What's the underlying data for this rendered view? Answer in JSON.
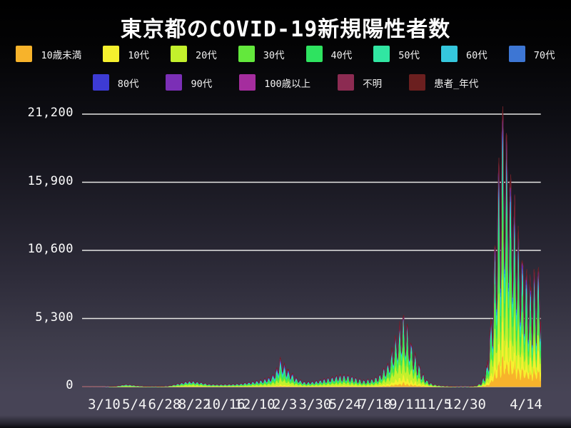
{
  "title": "東京都のCOVID-19新規陽性者数",
  "colors": {
    "text": "#ffffff",
    "grid": "#e6e6e4",
    "bg_top": "#000000",
    "bg_bottom": "#474456"
  },
  "chart_data": {
    "type": "area",
    "stacked": true,
    "title": "東京都のCOVID-19新規陽性者数",
    "xlabel": "",
    "ylabel": "",
    "grid": "horizontal",
    "legend_position": "top",
    "ylim": [
      0,
      21200
    ],
    "y_ticks": [
      0,
      5300,
      10600,
      15900,
      21200
    ],
    "y_tick_labels": [
      "0",
      "5,300",
      "10,600",
      "15,900",
      "21,200"
    ],
    "x_ticks": [
      {
        "label": "3/10",
        "day": 45
      },
      {
        "label": "5/4",
        "day": 100
      },
      {
        "label": "6/28",
        "day": 155
      },
      {
        "label": "8/22",
        "day": 210
      },
      {
        "label": "10/16",
        "day": 265
      },
      {
        "label": "12/10",
        "day": 320
      },
      {
        "label": "2/3",
        "day": 375
      },
      {
        "label": "3/30",
        "day": 430
      },
      {
        "label": "5/24",
        "day": 485
      },
      {
        "label": "7/18",
        "day": 540
      },
      {
        "label": "9/11",
        "day": 595
      },
      {
        "label": "11/5",
        "day": 650
      },
      {
        "label": "12/30",
        "day": 705
      },
      {
        "label": "4/14",
        "day": 810
      }
    ],
    "series": [
      {
        "name": "10歳未満",
        "color": "#F7B32B"
      },
      {
        "name": "10代",
        "color": "#F5F02E"
      },
      {
        "name": "20代",
        "color": "#C3F02C"
      },
      {
        "name": "30代",
        "color": "#63E83C"
      },
      {
        "name": "40代",
        "color": "#2EE360"
      },
      {
        "name": "50代",
        "color": "#31E6A2"
      },
      {
        "name": "60代",
        "color": "#35C7DD"
      },
      {
        "name": "70代",
        "color": "#3D76D4"
      },
      {
        "name": "80代",
        "color": "#3D3BD4"
      },
      {
        "name": "90代",
        "color": "#7B2FB6"
      },
      {
        "name": "100歳以上",
        "color": "#A52D9E"
      },
      {
        "name": "不明",
        "color": "#8C2B52"
      },
      {
        "name": "患者_年代",
        "color": "#6B1F1F"
      }
    ],
    "legend_rows": [
      [
        0,
        1,
        2,
        3,
        4,
        5,
        6,
        7
      ],
      [
        8,
        9,
        10,
        11,
        12
      ]
    ],
    "days_span": 810,
    "total_7day_envelope": [
      [
        0,
        2
      ],
      [
        30,
        4
      ],
      [
        45,
        15
      ],
      [
        60,
        40
      ],
      [
        75,
        165
      ],
      [
        85,
        150
      ],
      [
        95,
        90
      ],
      [
        110,
        30
      ],
      [
        130,
        22
      ],
      [
        150,
        45
      ],
      [
        170,
        220
      ],
      [
        185,
        380
      ],
      [
        195,
        410
      ],
      [
        210,
        300
      ],
      [
        225,
        180
      ],
      [
        240,
        165
      ],
      [
        260,
        180
      ],
      [
        280,
        220
      ],
      [
        300,
        350
      ],
      [
        320,
        500
      ],
      [
        335,
        750
      ],
      [
        345,
        1300
      ],
      [
        348,
        2100
      ],
      [
        355,
        1700
      ],
      [
        365,
        1150
      ],
      [
        380,
        550
      ],
      [
        395,
        330
      ],
      [
        410,
        380
      ],
      [
        430,
        550
      ],
      [
        455,
        800
      ],
      [
        465,
        820
      ],
      [
        480,
        650
      ],
      [
        495,
        450
      ],
      [
        510,
        500
      ],
      [
        525,
        800
      ],
      [
        540,
        1600
      ],
      [
        555,
        3500
      ],
      [
        565,
        4700
      ],
      [
        572,
        4400
      ],
      [
        580,
        3200
      ],
      [
        590,
        2000
      ],
      [
        600,
        1000
      ],
      [
        610,
        400
      ],
      [
        620,
        180
      ],
      [
        635,
        70
      ],
      [
        650,
        30
      ],
      [
        665,
        18
      ],
      [
        680,
        16
      ],
      [
        695,
        60
      ],
      [
        705,
        300
      ],
      [
        715,
        1400
      ],
      [
        722,
        4500
      ],
      [
        730,
        9500
      ],
      [
        736,
        14500
      ],
      [
        741,
        17800
      ],
      [
        744,
        18300
      ],
      [
        748,
        17200
      ],
      [
        755,
        15000
      ],
      [
        762,
        12500
      ],
      [
        770,
        10300
      ],
      [
        778,
        8800
      ],
      [
        785,
        7600
      ],
      [
        792,
        7000
      ],
      [
        798,
        7200
      ],
      [
        803,
        7600
      ],
      [
        806,
        7400
      ],
      [
        810,
        7000
      ]
    ],
    "age_share_percent_keypoints": [
      {
        "day": 0,
        "shares": [
          2,
          2,
          22,
          18,
          16,
          16,
          10,
          6,
          4,
          2,
          0.3,
          1.7,
          0
        ]
      },
      {
        "day": 200,
        "shares": [
          3,
          6,
          30,
          20,
          14,
          11,
          6,
          4,
          3,
          1.8,
          0.2,
          1,
          0
        ]
      },
      {
        "day": 348,
        "shares": [
          3,
          6,
          24,
          18,
          15,
          13,
          8,
          5,
          4,
          2.5,
          0.5,
          1,
          0
        ]
      },
      {
        "day": 565,
        "shares": [
          5,
          11,
          27,
          20,
          17,
          11,
          4,
          2,
          1.3,
          0.5,
          0.2,
          1,
          0
        ]
      },
      {
        "day": 660,
        "shares": [
          6,
          12,
          24,
          18,
          16,
          12,
          5,
          3,
          2,
          1,
          0.3,
          0.7,
          0
        ]
      },
      {
        "day": 743,
        "shares": [
          11,
          12,
          19,
          17,
          16,
          11,
          6,
          3.5,
          2.5,
          1.2,
          0.3,
          0.5,
          0
        ]
      },
      {
        "day": 810,
        "shares": [
          16,
          15,
          15,
          15,
          15,
          11,
          5.5,
          3,
          2.3,
          1.2,
          0.3,
          0.7,
          0
        ]
      }
    ],
    "weekly_oscillation": {
      "period_days": 7,
      "up": 0.18,
      "down": 0.5,
      "jitter": 0.1,
      "ramp": [
        [
          0,
          0.55
        ],
        [
          300,
          0.75
        ],
        [
          600,
          0.9
        ],
        [
          700,
          1.0
        ],
        [
          810,
          1.0
        ]
      ]
    },
    "peak_annotation": {
      "max_daily_value": 21500,
      "max_day": 743
    }
  }
}
